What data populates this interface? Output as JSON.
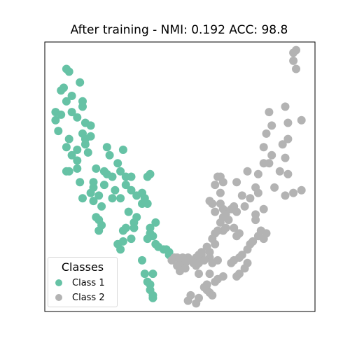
{
  "chart_data": {
    "type": "scatter",
    "title": "After training - NMI: 0.192 ACC: 98.8",
    "xlabel": "",
    "ylabel": "",
    "xlim": [
      0,
      100
    ],
    "ylim": [
      0,
      100
    ],
    "grid": false,
    "axes_ticks": false,
    "legend": {
      "title": "Classes",
      "placement": "lower-left"
    },
    "series": [
      {
        "name": "Class 1",
        "color": "#66c2a5",
        "points": [
          [
            8,
            90
          ],
          [
            9,
            89
          ],
          [
            6,
            82
          ],
          [
            7,
            83
          ],
          [
            13,
            85
          ],
          [
            10,
            80
          ],
          [
            8,
            78
          ],
          [
            14,
            78
          ],
          [
            14,
            76
          ],
          [
            4,
            74
          ],
          [
            6,
            73
          ],
          [
            10,
            74
          ],
          [
            4,
            71
          ],
          [
            12,
            72
          ],
          [
            15,
            70
          ],
          [
            17,
            69
          ],
          [
            5,
            67
          ],
          [
            14,
            66
          ],
          [
            9,
            64
          ],
          [
            15,
            64
          ],
          [
            17,
            65
          ],
          [
            15,
            62
          ],
          [
            16,
            59
          ],
          [
            8,
            61
          ],
          [
            10,
            58
          ],
          [
            12,
            60
          ],
          [
            23,
            61
          ],
          [
            12,
            56
          ],
          [
            29,
            60
          ],
          [
            24,
            58
          ],
          [
            27,
            55
          ],
          [
            8,
            52
          ],
          [
            9,
            52
          ],
          [
            12,
            53
          ],
          [
            19,
            53
          ],
          [
            22,
            52
          ],
          [
            28,
            52
          ],
          [
            23,
            51
          ],
          [
            25,
            50
          ],
          [
            30,
            50
          ],
          [
            32,
            50
          ],
          [
            38,
            50
          ],
          [
            39,
            51
          ],
          [
            18,
            48
          ],
          [
            18,
            46
          ],
          [
            13,
            48
          ],
          [
            22,
            47
          ],
          [
            32,
            45
          ],
          [
            26,
            45
          ],
          [
            30,
            47
          ],
          [
            17,
            44
          ],
          [
            20,
            43
          ],
          [
            34,
            43
          ],
          [
            36,
            44
          ],
          [
            14,
            42
          ],
          [
            25,
            42
          ],
          [
            28,
            42
          ],
          [
            21,
            39
          ],
          [
            18,
            41
          ],
          [
            19,
            35
          ],
          [
            36,
            40
          ],
          [
            37,
            42
          ],
          [
            31,
            37
          ],
          [
            38,
            40
          ],
          [
            41,
            33
          ],
          [
            33,
            33
          ],
          [
            34,
            35
          ],
          [
            39,
            31
          ],
          [
            21,
            32
          ],
          [
            20,
            34
          ],
          [
            20,
            30
          ],
          [
            29,
            30
          ],
          [
            30,
            31
          ],
          [
            33,
            31
          ],
          [
            38,
            27
          ],
          [
            39,
            29
          ],
          [
            40,
            28
          ],
          [
            27,
            25
          ],
          [
            29,
            26
          ],
          [
            32,
            27
          ],
          [
            28,
            23
          ],
          [
            41,
            25
          ],
          [
            42,
            24
          ],
          [
            44,
            23
          ],
          [
            46,
            22
          ],
          [
            45,
            23
          ],
          [
            36,
            19
          ],
          [
            40,
            14
          ],
          [
            37,
            14
          ],
          [
            38,
            11
          ],
          [
            39,
            10
          ],
          [
            39,
            8
          ],
          [
            40,
            6
          ],
          [
            40,
            5
          ],
          [
            46,
            21
          ],
          [
            47,
            20
          ]
        ]
      },
      {
        "name": "Class 2",
        "color": "#b3b3b3",
        "points": [
          [
            92,
            96
          ],
          [
            93,
            97
          ],
          [
            92,
            93
          ],
          [
            93,
            90
          ],
          [
            83,
            74
          ],
          [
            89,
            76
          ],
          [
            95,
            71
          ],
          [
            90,
            70
          ],
          [
            84,
            69
          ],
          [
            82,
            66
          ],
          [
            90,
            64
          ],
          [
            88,
            62
          ],
          [
            81,
            61
          ],
          [
            84,
            58
          ],
          [
            89,
            57
          ],
          [
            81,
            55
          ],
          [
            83,
            55
          ],
          [
            75,
            52
          ],
          [
            87,
            52
          ],
          [
            90,
            51
          ],
          [
            79,
            51
          ],
          [
            64,
            50
          ],
          [
            65,
            50
          ],
          [
            66,
            48
          ],
          [
            63,
            47
          ],
          [
            65,
            44
          ],
          [
            71,
            48
          ],
          [
            78,
            46
          ],
          [
            79,
            44
          ],
          [
            85,
            46
          ],
          [
            95,
            45
          ],
          [
            92,
            44
          ],
          [
            89,
            43
          ],
          [
            73,
            43
          ],
          [
            76,
            42
          ],
          [
            74,
            39
          ],
          [
            70,
            39
          ],
          [
            69,
            38
          ],
          [
            71,
            37
          ],
          [
            81,
            38
          ],
          [
            78,
            36
          ],
          [
            78,
            34
          ],
          [
            62,
            40
          ],
          [
            65,
            40
          ],
          [
            66,
            38
          ],
          [
            63,
            37
          ],
          [
            67,
            37
          ],
          [
            61,
            41
          ],
          [
            68,
            34
          ],
          [
            70,
            31
          ],
          [
            72,
            29
          ],
          [
            66,
            30
          ],
          [
            71,
            28
          ],
          [
            67,
            31
          ],
          [
            80,
            30
          ],
          [
            82,
            29
          ],
          [
            81,
            27
          ],
          [
            79,
            28
          ],
          [
            77,
            26
          ],
          [
            76,
            25
          ],
          [
            75,
            23
          ],
          [
            73,
            21
          ],
          [
            72,
            20
          ],
          [
            70,
            19
          ],
          [
            69,
            18
          ],
          [
            75,
            18
          ],
          [
            74,
            16
          ],
          [
            72,
            14
          ],
          [
            71,
            13
          ],
          [
            66,
            13
          ],
          [
            64,
            12
          ],
          [
            63,
            11
          ],
          [
            60,
            10
          ],
          [
            60,
            8
          ],
          [
            61,
            7
          ],
          [
            62,
            6
          ],
          [
            58,
            21
          ],
          [
            61,
            20
          ],
          [
            61,
            22
          ],
          [
            60,
            24
          ],
          [
            63,
            25
          ],
          [
            62,
            27
          ],
          [
            63,
            29
          ],
          [
            64,
            30
          ],
          [
            65,
            33
          ],
          [
            66,
            35
          ],
          [
            67,
            36
          ],
          [
            56,
            20
          ],
          [
            57,
            21
          ],
          [
            58,
            22
          ],
          [
            59,
            19
          ],
          [
            54,
            19
          ],
          [
            52,
            18
          ],
          [
            50,
            18
          ],
          [
            48,
            20
          ],
          [
            49,
            20
          ],
          [
            47,
            19
          ],
          [
            54,
            6
          ],
          [
            53,
            4
          ],
          [
            57,
            5
          ],
          [
            56,
            3
          ],
          [
            59,
            9
          ],
          [
            57,
            14
          ],
          [
            61,
            14
          ],
          [
            64,
            19
          ],
          [
            62,
            18
          ],
          [
            56,
            17
          ],
          [
            50,
            15
          ],
          [
            52,
            16
          ],
          [
            49,
            17
          ],
          [
            57,
            18
          ],
          [
            55,
            18
          ],
          [
            53,
            20
          ],
          [
            51,
            20
          ]
        ]
      }
    ]
  }
}
